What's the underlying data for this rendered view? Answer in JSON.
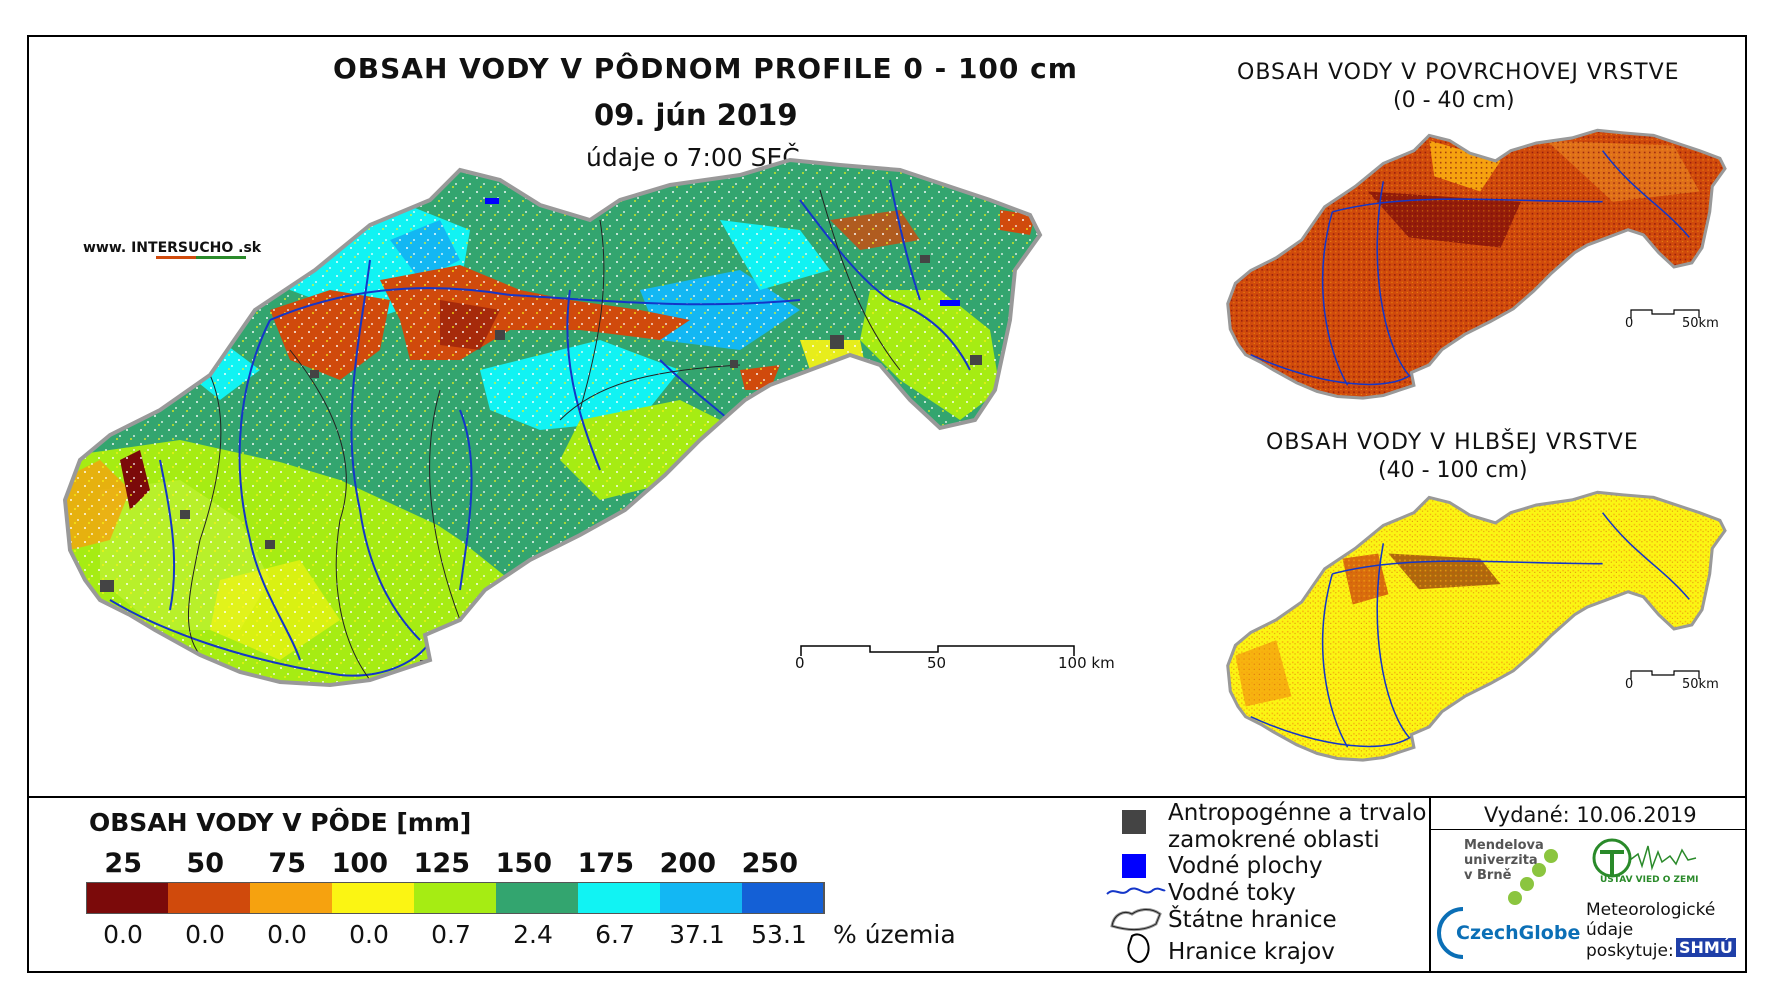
{
  "main": {
    "title": "OBSAH VODY V PÔDNOM PROFILE 0 - 100 cm",
    "date": "09. jún 2019",
    "time_note": "údaje o 7:00 SEČ",
    "watermark": "www. INTERSUCHO .sk",
    "scale": {
      "ticks": [
        "0",
        "50",
        "100 km"
      ]
    }
  },
  "inset_top": {
    "title_line1": "OBSAH VODY V POVRCHOVEJ VRSTVE",
    "title_line2": "(0 - 40 cm)",
    "scale": [
      "0",
      "50km"
    ]
  },
  "inset_bottom": {
    "title_line1": "OBSAH VODY V HLBŠEJ VRSTVE",
    "title_line2": "(40 - 100 cm)",
    "scale": [
      "0",
      "50km"
    ]
  },
  "legend": {
    "title": "OBSAH VODY V PÔDE [mm]",
    "thresholds": [
      "25",
      "50",
      "75",
      "100",
      "125",
      "150",
      "175",
      "200",
      "250"
    ],
    "colors": [
      "#7b0a0a",
      "#d04a0c",
      "#f6a20f",
      "#fbf513",
      "#a6ec13",
      "#33a56f",
      "#11f3f3",
      "#13b7f3",
      "#1460d6"
    ],
    "percentages": [
      "0.0",
      "0.0",
      "0.0",
      "0.0",
      "0.7",
      "2.4",
      "6.7",
      "37.1",
      "53.1"
    ],
    "unit": "% územia"
  },
  "symbols": {
    "anthropogenic_line1": "Antropogénne a trvalo",
    "anthropogenic_line2": "zamokrené oblasti",
    "water_bodies": "Vodné plochy",
    "rivers": "Vodné toky",
    "state_border": "Štátne hranice",
    "region_border": "Hranice krajov"
  },
  "issued": "Vydané: 10.06.2019",
  "credits": {
    "mendel_line1": "Mendelova",
    "mendel_line2": "univerzita",
    "mendel_line3": "v Brně",
    "czechglobe": "CzechGlobe",
    "uvoz": "ÚSTAV VIED O ZEMI",
    "met_line1": "Meteorologické",
    "met_line2": "údaje",
    "met_line3": "poskytuje:",
    "shmu": "SHMÚ"
  }
}
